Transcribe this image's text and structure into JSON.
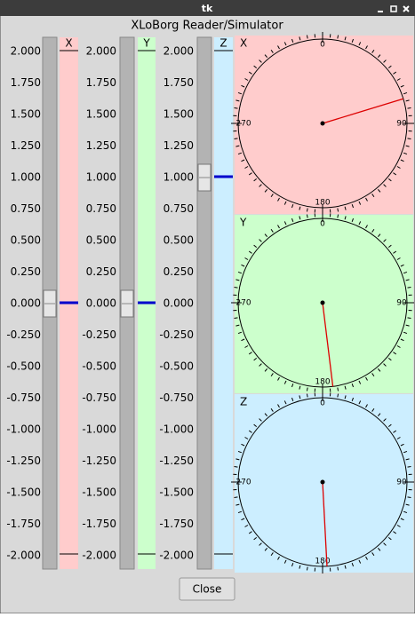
{
  "window": {
    "title": "tk"
  },
  "header": {
    "title": "XLoBorg Reader/Simulator"
  },
  "scale": {
    "ticks": [
      {
        "value": 2,
        "label": "2.000"
      },
      {
        "value": 1.75,
        "label": "1.750"
      },
      {
        "value": 1.5,
        "label": "1.500"
      },
      {
        "value": 1.25,
        "label": "1.250"
      },
      {
        "value": 1,
        "label": "1.000"
      },
      {
        "value": 0.75,
        "label": "0.750"
      },
      {
        "value": 0.5,
        "label": "0.500"
      },
      {
        "value": 0.25,
        "label": "0.250"
      },
      {
        "value": 0,
        "label": "0.000"
      },
      {
        "value": -0.25,
        "label": "-0.250"
      },
      {
        "value": -0.5,
        "label": "-0.500"
      },
      {
        "value": -0.75,
        "label": "-0.750"
      },
      {
        "value": -1,
        "label": "-1.000"
      },
      {
        "value": -1.25,
        "label": "-1.250"
      },
      {
        "value": -1.5,
        "label": "-1.500"
      },
      {
        "value": -1.75,
        "label": "-1.750"
      },
      {
        "value": -2,
        "label": "-2.000"
      }
    ]
  },
  "axes": [
    {
      "name": "X",
      "value": 0,
      "color": "#ffcccc"
    },
    {
      "name": "Y",
      "value": 0,
      "color": "#ccffcc"
    },
    {
      "name": "Z",
      "value": 1,
      "color": "#cceeff"
    }
  ],
  "dials": [
    {
      "name": "X",
      "angle": 73,
      "color": "#ffcccc"
    },
    {
      "name": "Y",
      "angle": 173,
      "color": "#ccffcc"
    },
    {
      "name": "Z",
      "angle": 177,
      "color": "#cceeff"
    }
  ],
  "dial_ticks": [
    0,
    90,
    180,
    270
  ],
  "button": "Close"
}
